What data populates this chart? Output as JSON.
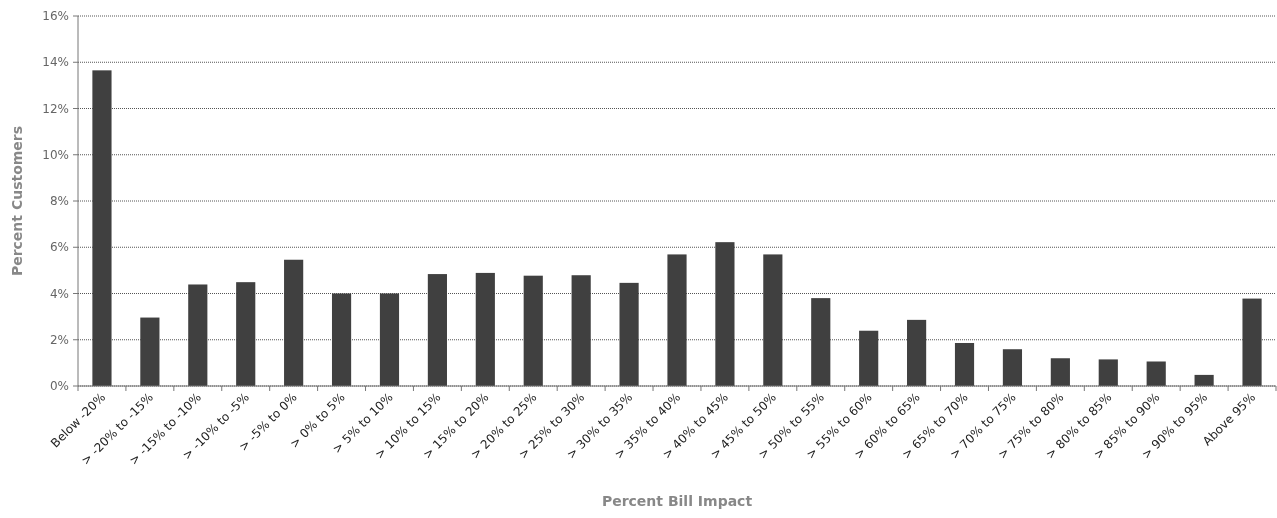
{
  "chart_data": {
    "type": "bar",
    "xlabel": "Percent Bill Impact",
    "ylabel": "Percent Customers",
    "categories": [
      "Below -20%",
      "> -20% to -15%",
      "> -15% to -10%",
      "> -10% to -5%",
      "> -5% to 0%",
      "> 0% to 5%",
      "> 5% to 10%",
      "> 10% to 15%",
      "> 15% to 20%",
      "> 20% to 25%",
      "> 25% to 30%",
      "> 30% to 35%",
      "> 35% to 40%",
      "> 40% to 45%",
      "> 45% to 50%",
      "> 50% to 55%",
      "> 55% to 60%",
      "> 60% to 65%",
      "> 65% to 70%",
      "> 70% to 75%",
      "> 75% to 80%",
      "> 80% to 85%",
      "> 85% to 90%",
      "> 90% to 95%",
      "Above 95%"
    ],
    "values": [
      13.65,
      2.96,
      4.39,
      4.49,
      5.46,
      4.0,
      4.0,
      4.84,
      4.89,
      4.77,
      4.79,
      4.46,
      5.69,
      6.22,
      5.69,
      3.8,
      2.39,
      2.86,
      1.86,
      1.59,
      1.2,
      1.15,
      1.06,
      0.48,
      3.78
    ],
    "color": "#404040",
    "ylim": [
      0,
      16
    ],
    "yticks": [
      {
        "value": 0,
        "label": "0%"
      },
      {
        "value": 2,
        "label": "2%"
      },
      {
        "value": 4,
        "label": "4%"
      },
      {
        "value": 6,
        "label": "6%"
      },
      {
        "value": 8,
        "label": "8%"
      },
      {
        "value": 10,
        "label": "10%"
      },
      {
        "value": 12,
        "label": "12%"
      },
      {
        "value": 14,
        "label": "14%"
      },
      {
        "value": 16,
        "label": "16%"
      }
    ],
    "grid": "y"
  }
}
